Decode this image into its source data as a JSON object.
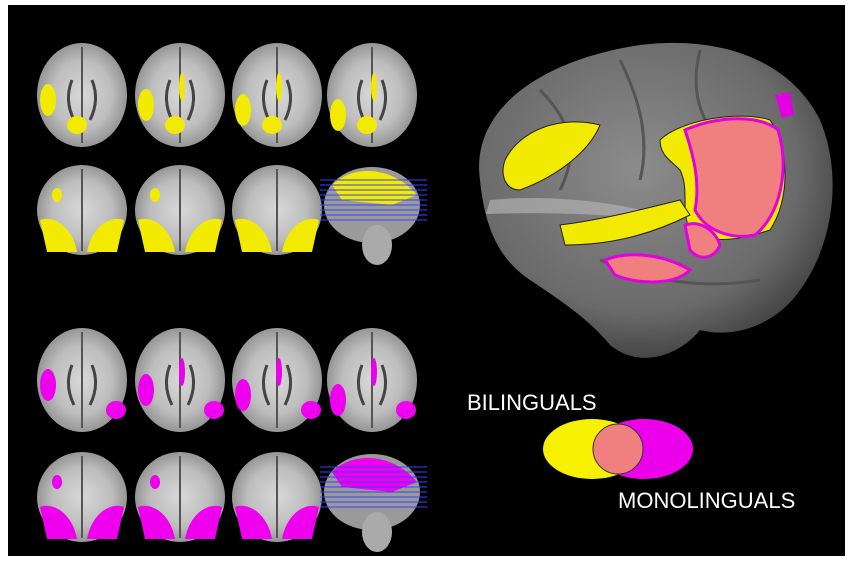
{
  "legend": {
    "bilinguals": "BILINGUALS",
    "monolinguals": "MONOLINGUALS"
  }
}
